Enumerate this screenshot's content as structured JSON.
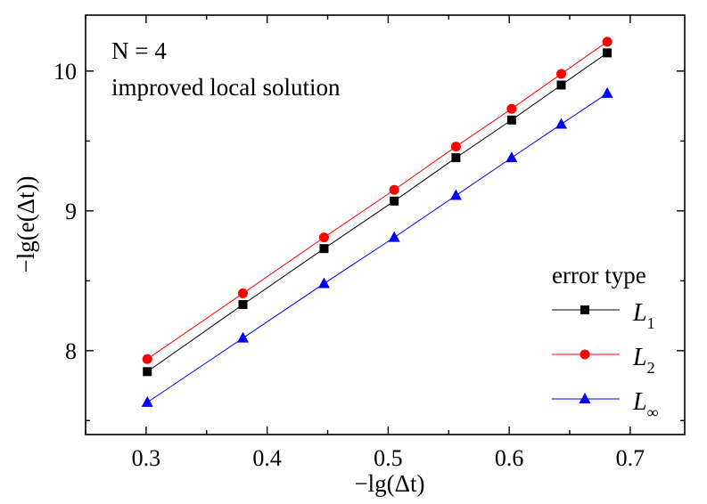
{
  "chart_data": {
    "type": "line",
    "xlabel": "−lg(Δt)",
    "ylabel": "−lg(e(Δt))",
    "xlim": [
      0.25,
      0.745
    ],
    "ylim": [
      7.4,
      10.4
    ],
    "xticks": [
      "0.3",
      "0.4",
      "0.5",
      "0.6",
      "0.7"
    ],
    "yticks": [
      "8",
      "9",
      "10"
    ],
    "grid": false,
    "annotations": [
      "N = 4",
      "improved local solution"
    ],
    "legend": {
      "title": "error type",
      "placement": "bottom-right"
    },
    "x": [
      0.301,
      0.38,
      0.447,
      0.505,
      0.556,
      0.602,
      0.643,
      0.681
    ],
    "series": [
      {
        "name": "L1",
        "color": "#000000",
        "marker": "square",
        "values": [
          7.85,
          8.33,
          8.73,
          9.07,
          9.38,
          9.65,
          9.9,
          10.13
        ]
      },
      {
        "name": "L2",
        "color": "#ff0000",
        "marker": "circle",
        "values": [
          7.94,
          8.41,
          8.81,
          9.15,
          9.46,
          9.73,
          9.98,
          10.21
        ]
      },
      {
        "name": "L∞",
        "color": "#0000ff",
        "marker": "triangle",
        "values": [
          7.63,
          8.09,
          8.48,
          8.81,
          9.11,
          9.38,
          9.62,
          9.84
        ]
      }
    ]
  }
}
